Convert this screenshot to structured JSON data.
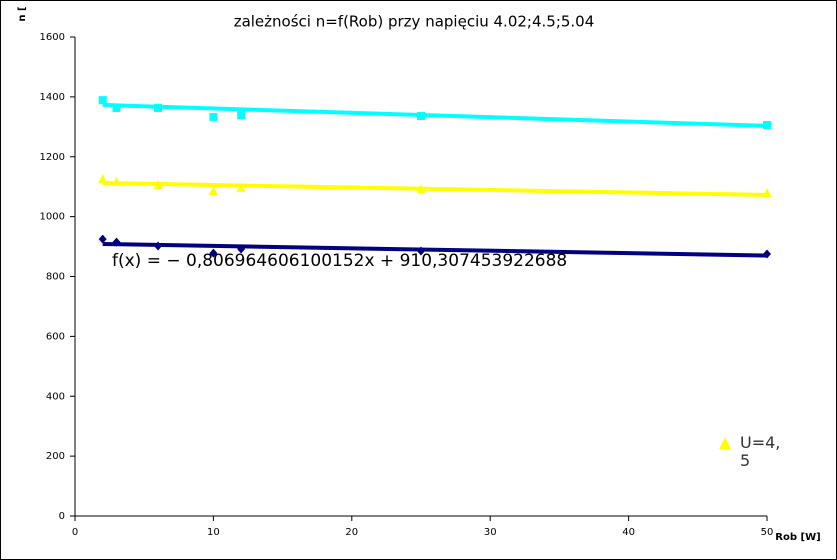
{
  "chart_data": {
    "type": "scatter",
    "title": "zależności n=f(Rob) przy napięciu 4.02;4.5;5.04",
    "x_label": "Rob [W]",
    "y_label": "n [",
    "annotation": "f(x) = − 0,806964606100152x + 910,307453922688",
    "xlim": [
      0,
      50
    ],
    "xticks": [
      0,
      10,
      20,
      30,
      40,
      50
    ],
    "ylim": [
      0,
      1600
    ],
    "yticks": [
      0,
      200,
      400,
      600,
      800,
      1000,
      1200,
      1400,
      1600
    ],
    "grid": false,
    "legend": "bottom-right",
    "x": [
      2,
      3,
      6,
      10,
      12,
      25,
      50
    ],
    "series": [
      {
        "color": "#000080",
        "marker": "diamond",
        "values": [
          925,
          915,
          902,
          878,
          892,
          885,
          875
        ],
        "trendline": {
          "slope": -0.806964606100152,
          "intercept": 910.307453922688
        }
      },
      {
        "name": "U=4,5",
        "color": "#ffff00",
        "marker": "triangle",
        "values": [
          1126,
          1116,
          1106,
          1085,
          1096,
          1092,
          1079
        ],
        "trendline": {
          "slope": -0.83,
          "intercept": 1114
        }
      },
      {
        "color": "#00ffff",
        "marker": "square",
        "values": [
          1389,
          1363,
          1363,
          1333,
          1339,
          1336,
          1306
        ],
        "trendline": {
          "slope": -1.46,
          "intercept": 1376
        }
      }
    ]
  }
}
